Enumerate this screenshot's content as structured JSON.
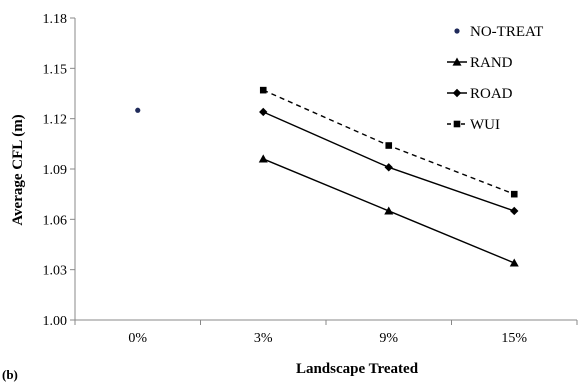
{
  "chart_data": {
    "type": "line",
    "panel_label": "(b)",
    "xlabel": "Landscape Treated",
    "ylabel": "Average CFL (m)",
    "categories": [
      "0%",
      "3%",
      "9%",
      "15%"
    ],
    "ylim": [
      1.0,
      1.18
    ],
    "yticks": [
      "1.00",
      "1.03",
      "1.06",
      "1.09",
      "1.12",
      "1.15",
      "1.18"
    ],
    "grid": false,
    "legend_position": "top-right",
    "series": [
      {
        "name": "NO-TREAT",
        "marker": "dot",
        "line": "none",
        "color": "#1f2a5a",
        "values": [
          1.125,
          null,
          null,
          null
        ]
      },
      {
        "name": "RAND",
        "marker": "triangle",
        "line": "solid",
        "color": "#000000",
        "values": [
          null,
          1.096,
          1.065,
          1.034
        ]
      },
      {
        "name": "ROAD",
        "marker": "diamond",
        "line": "solid",
        "color": "#000000",
        "values": [
          null,
          1.124,
          1.091,
          1.065
        ]
      },
      {
        "name": "WUI",
        "marker": "square",
        "line": "dashed",
        "color": "#000000",
        "values": [
          null,
          1.137,
          1.104,
          1.075
        ]
      }
    ]
  }
}
